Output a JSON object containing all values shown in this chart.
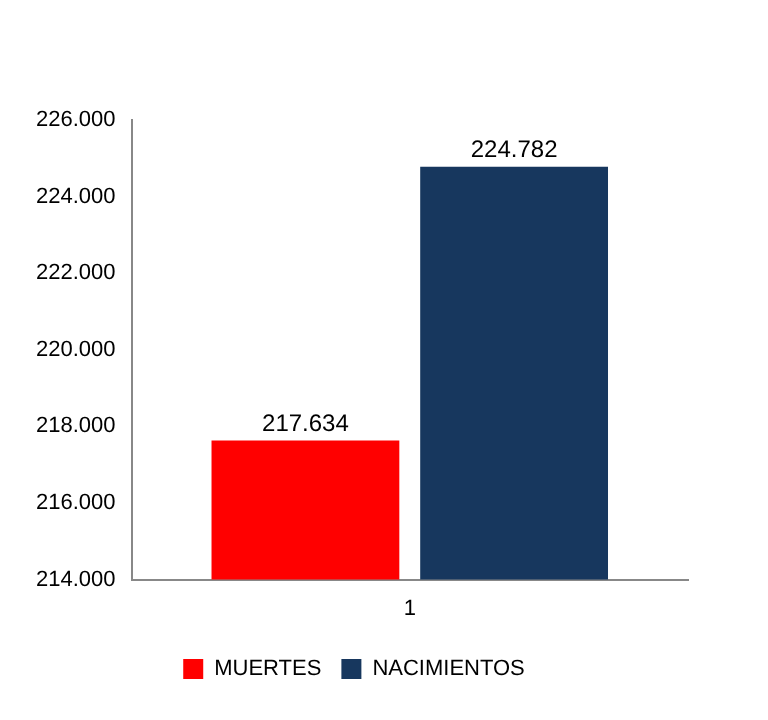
{
  "chart_data": {
    "type": "bar",
    "categories": [
      "1"
    ],
    "series": [
      {
        "name": "MUERTES",
        "color": "#ff0000",
        "values": [
          217634
        ],
        "value_labels": [
          "217.634"
        ]
      },
      {
        "name": "NACIMIENTOS",
        "color": "#17375e",
        "values": [
          224782
        ],
        "value_labels": [
          "224.782"
        ]
      }
    ],
    "ylim": [
      214000,
      226000
    ],
    "yticks": [
      {
        "value": 214000,
        "label": "214.000"
      },
      {
        "value": 216000,
        "label": "216.000"
      },
      {
        "value": 218000,
        "label": "218.000"
      },
      {
        "value": 220000,
        "label": "220.000"
      },
      {
        "value": 222000,
        "label": "222.000"
      },
      {
        "value": 224000,
        "label": "224.000"
      },
      {
        "value": 226000,
        "label": "226.000"
      }
    ],
    "grid": false,
    "legend": "bottom"
  }
}
